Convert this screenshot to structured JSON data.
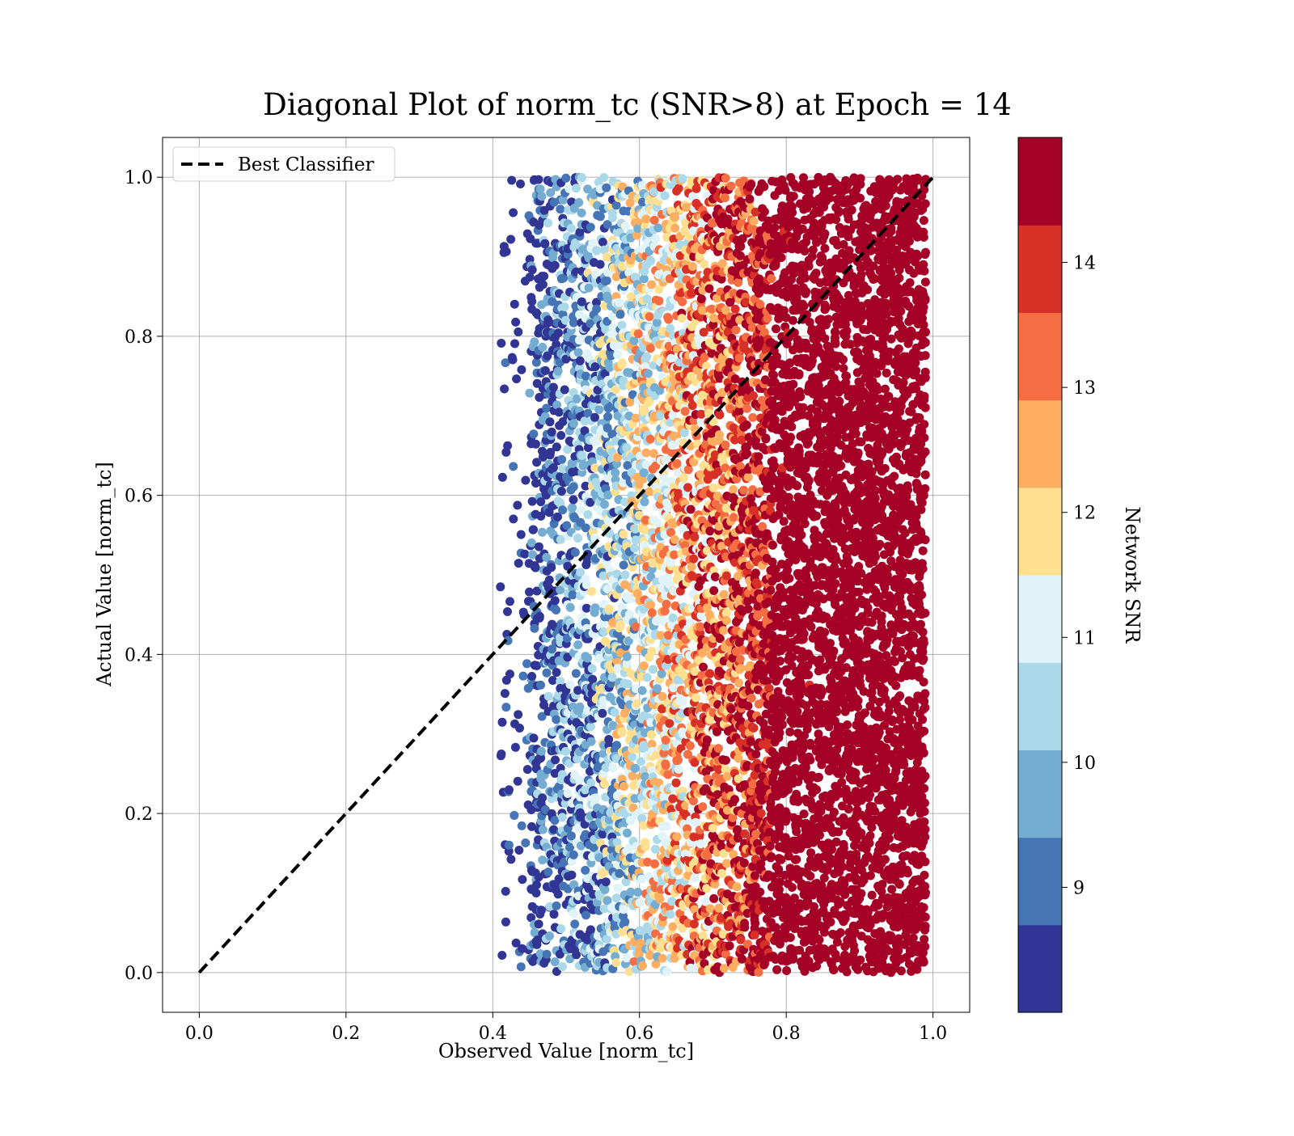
{
  "chart_data": {
    "type": "scatter",
    "title": "Diagonal Plot of norm_tc (SNR>8) at Epoch = 14",
    "xlabel": "Observed Value [norm_tc]",
    "ylabel": "Actual Value [norm_tc]",
    "xlim": [
      -0.05,
      1.05
    ],
    "ylim": [
      -0.05,
      1.05
    ],
    "xticks": [
      "0.0",
      "0.2",
      "0.4",
      "0.6",
      "0.8",
      "1.0"
    ],
    "yticks": [
      "0.0",
      "0.2",
      "0.4",
      "0.6",
      "0.8",
      "1.0"
    ],
    "grid": true,
    "legend": {
      "position": "top-left",
      "entries": [
        "Best Classifier"
      ]
    },
    "reference_line": {
      "name": "Best Classifier",
      "x": [
        0,
        1
      ],
      "y": [
        0,
        1
      ],
      "style": "dashed",
      "color": "#000000"
    },
    "colorbar": {
      "label": "Network SNR",
      "range": [
        8,
        15
      ],
      "ticks": [
        "9",
        "10",
        "11",
        "12",
        "13",
        "14"
      ],
      "colors": [
        "#313695",
        "#4575b4",
        "#74add1",
        "#abd9e9",
        "#e0f3f8",
        "#fee090",
        "#fdae61",
        "#f46d43",
        "#d73027",
        "#a50026"
      ]
    },
    "points_description_values": {
      "x_range": [
        0.41,
        0.99
      ],
      "y_range": [
        0.0,
        1.0
      ]
    }
  }
}
